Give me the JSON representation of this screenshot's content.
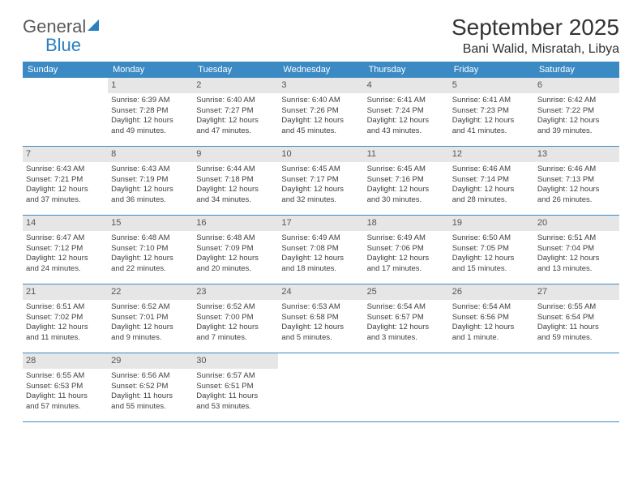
{
  "logo": {
    "general": "General",
    "blue": "Blue"
  },
  "title": "September 2025",
  "location": "Bani Walid, Misratah, Libya",
  "colors": {
    "header_bg": "#3b8ac4",
    "header_text": "#ffffff",
    "daynum_bg": "#e6e6e6",
    "rule": "#3b8ac4",
    "logo_blue": "#2a7fbf",
    "body_text": "#404040"
  },
  "weekdays": [
    "Sunday",
    "Monday",
    "Tuesday",
    "Wednesday",
    "Thursday",
    "Friday",
    "Saturday"
  ],
  "weeks": [
    [
      null,
      {
        "n": "1",
        "sr": "Sunrise: 6:39 AM",
        "ss": "Sunset: 7:28 PM",
        "d1": "Daylight: 12 hours",
        "d2": "and 49 minutes."
      },
      {
        "n": "2",
        "sr": "Sunrise: 6:40 AM",
        "ss": "Sunset: 7:27 PM",
        "d1": "Daylight: 12 hours",
        "d2": "and 47 minutes."
      },
      {
        "n": "3",
        "sr": "Sunrise: 6:40 AM",
        "ss": "Sunset: 7:26 PM",
        "d1": "Daylight: 12 hours",
        "d2": "and 45 minutes."
      },
      {
        "n": "4",
        "sr": "Sunrise: 6:41 AM",
        "ss": "Sunset: 7:24 PM",
        "d1": "Daylight: 12 hours",
        "d2": "and 43 minutes."
      },
      {
        "n": "5",
        "sr": "Sunrise: 6:41 AM",
        "ss": "Sunset: 7:23 PM",
        "d1": "Daylight: 12 hours",
        "d2": "and 41 minutes."
      },
      {
        "n": "6",
        "sr": "Sunrise: 6:42 AM",
        "ss": "Sunset: 7:22 PM",
        "d1": "Daylight: 12 hours",
        "d2": "and 39 minutes."
      }
    ],
    [
      {
        "n": "7",
        "sr": "Sunrise: 6:43 AM",
        "ss": "Sunset: 7:21 PM",
        "d1": "Daylight: 12 hours",
        "d2": "and 37 minutes."
      },
      {
        "n": "8",
        "sr": "Sunrise: 6:43 AM",
        "ss": "Sunset: 7:19 PM",
        "d1": "Daylight: 12 hours",
        "d2": "and 36 minutes."
      },
      {
        "n": "9",
        "sr": "Sunrise: 6:44 AM",
        "ss": "Sunset: 7:18 PM",
        "d1": "Daylight: 12 hours",
        "d2": "and 34 minutes."
      },
      {
        "n": "10",
        "sr": "Sunrise: 6:45 AM",
        "ss": "Sunset: 7:17 PM",
        "d1": "Daylight: 12 hours",
        "d2": "and 32 minutes."
      },
      {
        "n": "11",
        "sr": "Sunrise: 6:45 AM",
        "ss": "Sunset: 7:16 PM",
        "d1": "Daylight: 12 hours",
        "d2": "and 30 minutes."
      },
      {
        "n": "12",
        "sr": "Sunrise: 6:46 AM",
        "ss": "Sunset: 7:14 PM",
        "d1": "Daylight: 12 hours",
        "d2": "and 28 minutes."
      },
      {
        "n": "13",
        "sr": "Sunrise: 6:46 AM",
        "ss": "Sunset: 7:13 PM",
        "d1": "Daylight: 12 hours",
        "d2": "and 26 minutes."
      }
    ],
    [
      {
        "n": "14",
        "sr": "Sunrise: 6:47 AM",
        "ss": "Sunset: 7:12 PM",
        "d1": "Daylight: 12 hours",
        "d2": "and 24 minutes."
      },
      {
        "n": "15",
        "sr": "Sunrise: 6:48 AM",
        "ss": "Sunset: 7:10 PM",
        "d1": "Daylight: 12 hours",
        "d2": "and 22 minutes."
      },
      {
        "n": "16",
        "sr": "Sunrise: 6:48 AM",
        "ss": "Sunset: 7:09 PM",
        "d1": "Daylight: 12 hours",
        "d2": "and 20 minutes."
      },
      {
        "n": "17",
        "sr": "Sunrise: 6:49 AM",
        "ss": "Sunset: 7:08 PM",
        "d1": "Daylight: 12 hours",
        "d2": "and 18 minutes."
      },
      {
        "n": "18",
        "sr": "Sunrise: 6:49 AM",
        "ss": "Sunset: 7:06 PM",
        "d1": "Daylight: 12 hours",
        "d2": "and 17 minutes."
      },
      {
        "n": "19",
        "sr": "Sunrise: 6:50 AM",
        "ss": "Sunset: 7:05 PM",
        "d1": "Daylight: 12 hours",
        "d2": "and 15 minutes."
      },
      {
        "n": "20",
        "sr": "Sunrise: 6:51 AM",
        "ss": "Sunset: 7:04 PM",
        "d1": "Daylight: 12 hours",
        "d2": "and 13 minutes."
      }
    ],
    [
      {
        "n": "21",
        "sr": "Sunrise: 6:51 AM",
        "ss": "Sunset: 7:02 PM",
        "d1": "Daylight: 12 hours",
        "d2": "and 11 minutes."
      },
      {
        "n": "22",
        "sr": "Sunrise: 6:52 AM",
        "ss": "Sunset: 7:01 PM",
        "d1": "Daylight: 12 hours",
        "d2": "and 9 minutes."
      },
      {
        "n": "23",
        "sr": "Sunrise: 6:52 AM",
        "ss": "Sunset: 7:00 PM",
        "d1": "Daylight: 12 hours",
        "d2": "and 7 minutes."
      },
      {
        "n": "24",
        "sr": "Sunrise: 6:53 AM",
        "ss": "Sunset: 6:58 PM",
        "d1": "Daylight: 12 hours",
        "d2": "and 5 minutes."
      },
      {
        "n": "25",
        "sr": "Sunrise: 6:54 AM",
        "ss": "Sunset: 6:57 PM",
        "d1": "Daylight: 12 hours",
        "d2": "and 3 minutes."
      },
      {
        "n": "26",
        "sr": "Sunrise: 6:54 AM",
        "ss": "Sunset: 6:56 PM",
        "d1": "Daylight: 12 hours",
        "d2": "and 1 minute."
      },
      {
        "n": "27",
        "sr": "Sunrise: 6:55 AM",
        "ss": "Sunset: 6:54 PM",
        "d1": "Daylight: 11 hours",
        "d2": "and 59 minutes."
      }
    ],
    [
      {
        "n": "28",
        "sr": "Sunrise: 6:55 AM",
        "ss": "Sunset: 6:53 PM",
        "d1": "Daylight: 11 hours",
        "d2": "and 57 minutes."
      },
      {
        "n": "29",
        "sr": "Sunrise: 6:56 AM",
        "ss": "Sunset: 6:52 PM",
        "d1": "Daylight: 11 hours",
        "d2": "and 55 minutes."
      },
      {
        "n": "30",
        "sr": "Sunrise: 6:57 AM",
        "ss": "Sunset: 6:51 PM",
        "d1": "Daylight: 11 hours",
        "d2": "and 53 minutes."
      },
      null,
      null,
      null,
      null
    ]
  ]
}
